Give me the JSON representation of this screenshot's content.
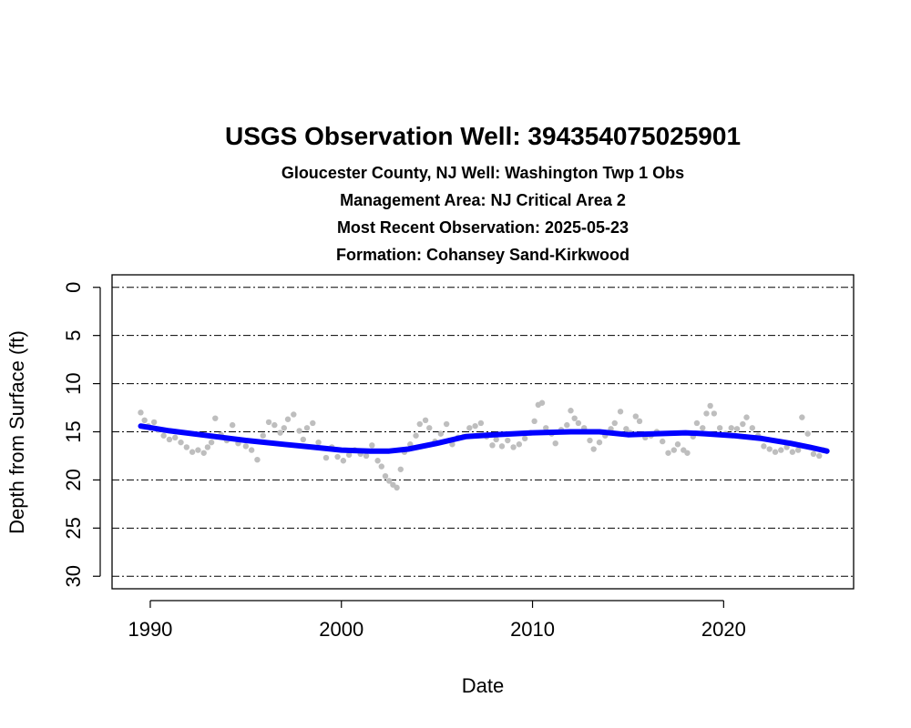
{
  "colors": {
    "points": "#bebebe",
    "trend": "#0000ff",
    "grid": "#000000",
    "text": "#000000"
  },
  "chart_data": {
    "type": "scatter",
    "title": "USGS Observation Well:  394354075025901",
    "subtitles": [
      "Gloucester County, NJ    Well: Washington Twp 1 Obs",
      "Management Area: NJ Critical Area 2",
      "Most Recent Observation: 2025-05-23",
      "Formation: Cohansey Sand-Kirkwood"
    ],
    "xlabel": "Date",
    "ylabel": "Depth from Surface (ft)",
    "xlim": [
      1988.0,
      2026.8
    ],
    "ylim": [
      31.3,
      -1.3
    ],
    "y_reversed": true,
    "x_ticks": [
      1990,
      2000,
      2010,
      2020
    ],
    "y_ticks": [
      0,
      5,
      10,
      15,
      20,
      25,
      30
    ],
    "grid": "horizontal dash-dot",
    "series": [
      {
        "kind": "points",
        "x": [
          1989.5,
          1989.7,
          1989.9,
          1990.2,
          1990.4,
          1990.7,
          1991.0,
          1991.3,
          1991.6,
          1991.9,
          1992.2,
          1992.5,
          1992.8,
          1993.0,
          1993.2,
          1993.4,
          1993.7,
          1994.0,
          1994.3,
          1994.6,
          1995.0,
          1995.3,
          1995.6,
          1995.9,
          1996.2,
          1996.5,
          1996.8,
          1997.0,
          1997.2,
          1997.5,
          1997.8,
          1998.0,
          1998.2,
          1998.5,
          1998.8,
          1999.2,
          1999.5,
          1999.8,
          2000.1,
          2000.4,
          2000.7,
          2001.0,
          2001.3,
          2001.6,
          2001.9,
          2002.1,
          2002.3,
          2002.5,
          2002.7,
          2002.9,
          2003.1,
          2003.3,
          2003.6,
          2003.9,
          2004.1,
          2004.4,
          2004.6,
          2004.9,
          2005.2,
          2005.5,
          2005.8,
          2006.1,
          2006.4,
          2006.7,
          2007.0,
          2007.3,
          2007.6,
          2007.9,
          2008.1,
          2008.4,
          2008.7,
          2009.0,
          2009.3,
          2009.6,
          2009.9,
          2010.1,
          2010.3,
          2010.5,
          2010.7,
          2011.0,
          2011.2,
          2011.5,
          2011.8,
          2012.0,
          2012.2,
          2012.4,
          2012.7,
          2013.0,
          2013.2,
          2013.5,
          2013.8,
          2014.1,
          2014.3,
          2014.6,
          2014.9,
          2015.1,
          2015.4,
          2015.6,
          2015.9,
          2016.2,
          2016.5,
          2016.8,
          2017.1,
          2017.4,
          2017.6,
          2017.9,
          2018.1,
          2018.4,
          2018.6,
          2018.9,
          2019.1,
          2019.3,
          2019.5,
          2019.8,
          2020.1,
          2020.4,
          2020.7,
          2021.0,
          2021.2,
          2021.5,
          2021.8,
          2022.1,
          2022.4,
          2022.7,
          2023.0,
          2023.3,
          2023.6,
          2023.9,
          2024.1,
          2024.4,
          2024.7,
          2025.0,
          2025.2,
          2025.4
        ],
        "y": [
          13.0,
          13.8,
          14.4,
          14.0,
          14.8,
          15.4,
          15.8,
          15.6,
          16.1,
          16.6,
          17.1,
          16.9,
          17.2,
          16.6,
          16.1,
          13.6,
          15.3,
          15.9,
          14.3,
          16.2,
          16.5,
          16.9,
          17.9,
          15.4,
          14.0,
          14.3,
          15.1,
          14.6,
          13.7,
          13.2,
          14.9,
          15.8,
          14.6,
          14.1,
          16.1,
          17.7,
          16.6,
          17.6,
          18.0,
          17.4,
          16.9,
          17.3,
          17.5,
          16.4,
          18.0,
          18.6,
          19.6,
          20.1,
          20.5,
          20.8,
          18.9,
          17.1,
          16.3,
          15.4,
          14.2,
          13.8,
          14.6,
          16.0,
          15.2,
          14.2,
          16.3,
          15.6,
          15.5,
          14.6,
          14.4,
          14.1,
          15.5,
          16.4,
          15.8,
          16.5,
          15.9,
          16.6,
          16.3,
          15.7,
          15.1,
          13.9,
          12.2,
          12.0,
          14.6,
          15.2,
          16.2,
          14.8,
          14.3,
          12.8,
          13.6,
          14.1,
          14.6,
          15.9,
          16.8,
          16.1,
          15.4,
          14.7,
          14.1,
          12.9,
          14.7,
          15.1,
          13.4,
          13.9,
          15.6,
          15.4,
          15.0,
          16.0,
          17.2,
          16.9,
          16.3,
          16.9,
          17.2,
          15.5,
          14.1,
          14.6,
          13.1,
          12.3,
          13.1,
          14.6,
          15.2,
          14.6,
          14.7,
          14.2,
          13.5,
          14.6,
          15.4,
          16.5,
          16.8,
          17.1,
          16.9,
          16.6,
          17.1,
          16.9,
          13.5,
          15.2,
          17.3,
          17.5,
          16.9,
          17.0
        ]
      },
      {
        "kind": "smoothed line",
        "x": [
          1989.5,
          1991.0,
          1993.0,
          1995.0,
          1997.0,
          1998.5,
          2000.0,
          2001.5,
          2002.5,
          2003.5,
          2005.0,
          2006.5,
          2008.0,
          2010.0,
          2012.0,
          2013.5,
          2015.0,
          2016.5,
          2018.0,
          2019.0,
          2020.5,
          2022.0,
          2023.5,
          2024.5,
          2025.4
        ],
        "y": [
          14.4,
          14.9,
          15.4,
          15.9,
          16.3,
          16.6,
          16.9,
          17.0,
          17.0,
          16.8,
          16.2,
          15.5,
          15.3,
          15.1,
          15.0,
          15.0,
          15.3,
          15.2,
          15.1,
          15.2,
          15.4,
          15.7,
          16.2,
          16.6,
          17.0
        ]
      }
    ]
  }
}
